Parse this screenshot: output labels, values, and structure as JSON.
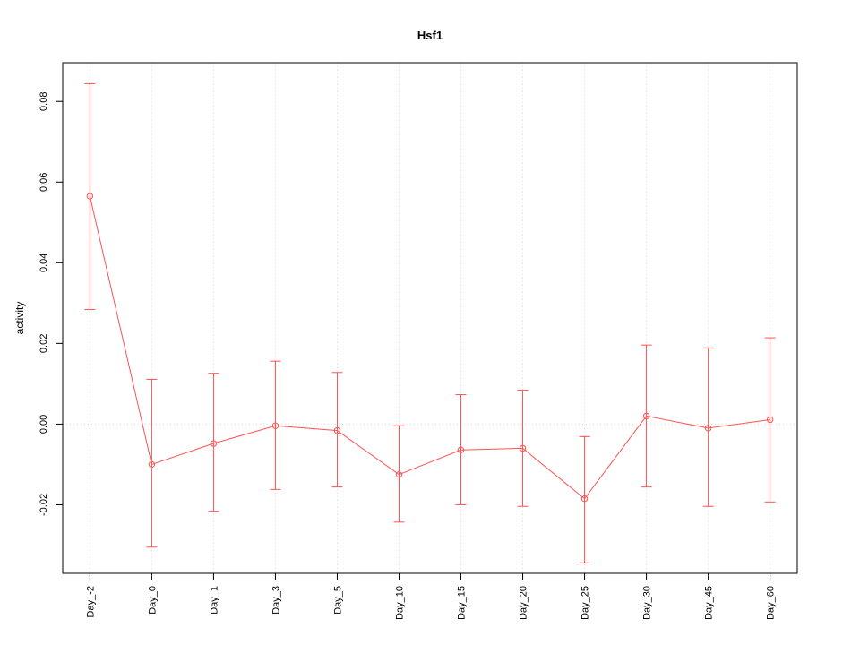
{
  "chart_data": {
    "type": "line",
    "title": "Hsf1",
    "xlabel": "",
    "ylabel": "activity",
    "categories": [
      "Day_-2",
      "Day_0",
      "Day_1",
      "Day_3",
      "Day_5",
      "Day_10",
      "Day_15",
      "Day_20",
      "Day_25",
      "Day_30",
      "Day_45",
      "Day_60"
    ],
    "values": [
      0.0565,
      -0.01,
      -0.0048,
      -0.0004,
      -0.0016,
      -0.0125,
      -0.0064,
      -0.006,
      -0.0185,
      0.002,
      -0.001,
      0.0011
    ],
    "error_low": [
      0.0284,
      -0.0305,
      -0.0216,
      -0.0162,
      -0.0156,
      -0.0243,
      -0.02,
      -0.0204,
      -0.0344,
      -0.0156,
      -0.0204,
      -0.0193
    ],
    "error_high": [
      0.0844,
      0.0111,
      0.0126,
      0.0156,
      0.0128,
      -0.0004,
      0.0073,
      0.0084,
      -0.0031,
      0.0196,
      0.0189,
      0.0214
    ],
    "yticks": [
      -0.02,
      0.0,
      0.02,
      0.04,
      0.06,
      0.08
    ],
    "ylim": [
      -0.037,
      0.0896
    ],
    "zero_line": 0,
    "grid": "vertical dotted at each category, dotted horizontal at zero",
    "legend": "none",
    "marker": "open-circle",
    "line_color": "#ff5252",
    "grid_color": "#d8d8d8",
    "box_color": "#000000",
    "background": "#ffffff"
  }
}
